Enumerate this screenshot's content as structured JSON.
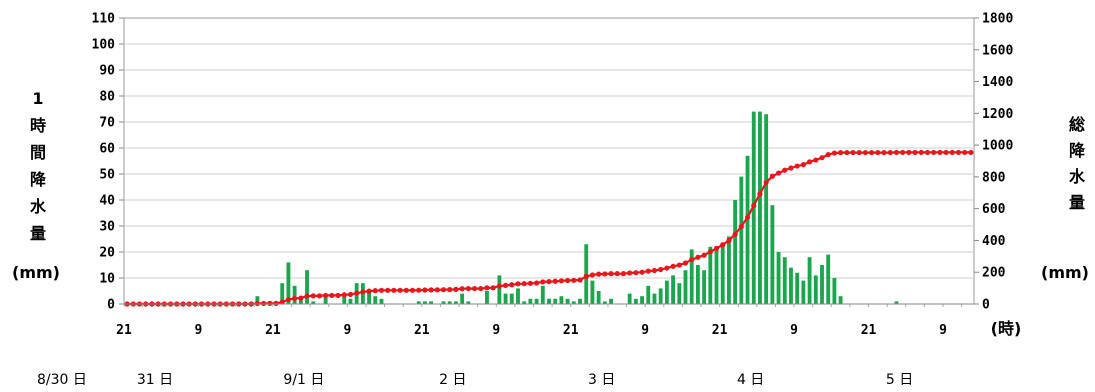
{
  "chart_data": {
    "type": "bar+line",
    "y_left": {
      "label_chars": [
        "1",
        "時",
        "間",
        "降",
        "水",
        "量"
      ],
      "unit": "(mm)",
      "range": [
        0,
        110
      ],
      "ticks": [
        0,
        10,
        20,
        30,
        40,
        50,
        60,
        70,
        80,
        90,
        100,
        110
      ]
    },
    "y_right": {
      "label_chars": [
        "総",
        "降",
        "水",
        "量"
      ],
      "unit": "(mm)",
      "range": [
        0,
        1800
      ],
      "ticks": [
        0,
        200,
        400,
        600,
        800,
        1000,
        1200,
        1400,
        1600,
        1800
      ]
    },
    "x_axis": {
      "unit": "(時)",
      "tick_labels": [
        {
          "hour": 0,
          "label": "21"
        },
        {
          "hour": 12,
          "label": "9"
        },
        {
          "hour": 24,
          "label": "21"
        },
        {
          "hour": 36,
          "label": "9"
        },
        {
          "hour": 48,
          "label": "21"
        },
        {
          "hour": 60,
          "label": "9"
        },
        {
          "hour": 72,
          "label": "21"
        },
        {
          "hour": 84,
          "label": "9"
        },
        {
          "hour": 96,
          "label": "21"
        },
        {
          "hour": 108,
          "label": "9"
        },
        {
          "hour": 120,
          "label": "21"
        },
        {
          "hour": 132,
          "label": "9"
        }
      ],
      "date_labels": [
        {
          "hour": -10,
          "label": "8/30 日"
        },
        {
          "hour": 5,
          "label": "31 日"
        },
        {
          "hour": 29,
          "label": "9/1 日"
        },
        {
          "hour": 53,
          "label": "2 日"
        },
        {
          "hour": 77,
          "label": "3 日"
        },
        {
          "hour": 101,
          "label": "4 日"
        },
        {
          "hour": 125,
          "label": "5 日"
        }
      ]
    },
    "x_start": "2011-08-30 21:00",
    "hours": 137,
    "bar_color": "#1aa64c",
    "line_color": "#e8171b",
    "hourly": {
      "21": 3,
      "23": 1,
      "25": 8,
      "26": 16,
      "27": 7,
      "28": 2,
      "29": 13,
      "30": 1,
      "32": 3,
      "35": 4,
      "36": 2,
      "37": 8,
      "38": 8,
      "39": 5,
      "40": 3,
      "41": 2,
      "47": 1,
      "48": 1,
      "49": 1,
      "51": 1,
      "52": 1,
      "53": 1,
      "54": 4,
      "55": 1,
      "58": 5,
      "60": 11,
      "61": 4,
      "62": 4,
      "63": 6,
      "64": 1,
      "65": 2,
      "66": 2,
      "67": 7,
      "68": 2,
      "69": 2,
      "70": 3,
      "71": 2,
      "72": 1,
      "73": 2,
      "74": 23,
      "75": 9,
      "76": 5,
      "77": 1,
      "78": 2,
      "81": 4,
      "82": 2,
      "83": 3,
      "84": 7,
      "85": 4,
      "86": 6,
      "87": 9,
      "88": 11,
      "89": 8,
      "90": 13,
      "91": 21,
      "92": 15,
      "93": 13,
      "94": 22,
      "95": 21,
      "96": 23,
      "97": 26,
      "98": 40,
      "99": 49,
      "100": 57,
      "101": 74,
      "102": 74,
      "103": 73,
      "104": 38,
      "105": 20,
      "106": 18,
      "107": 14,
      "108": 12,
      "109": 9,
      "110": 18,
      "111": 11,
      "112": 15,
      "113": 19,
      "114": 10,
      "115": 3,
      "124": 1
    },
    "total_label": "総降水量",
    "hourly_label": "1時間降水量"
  }
}
